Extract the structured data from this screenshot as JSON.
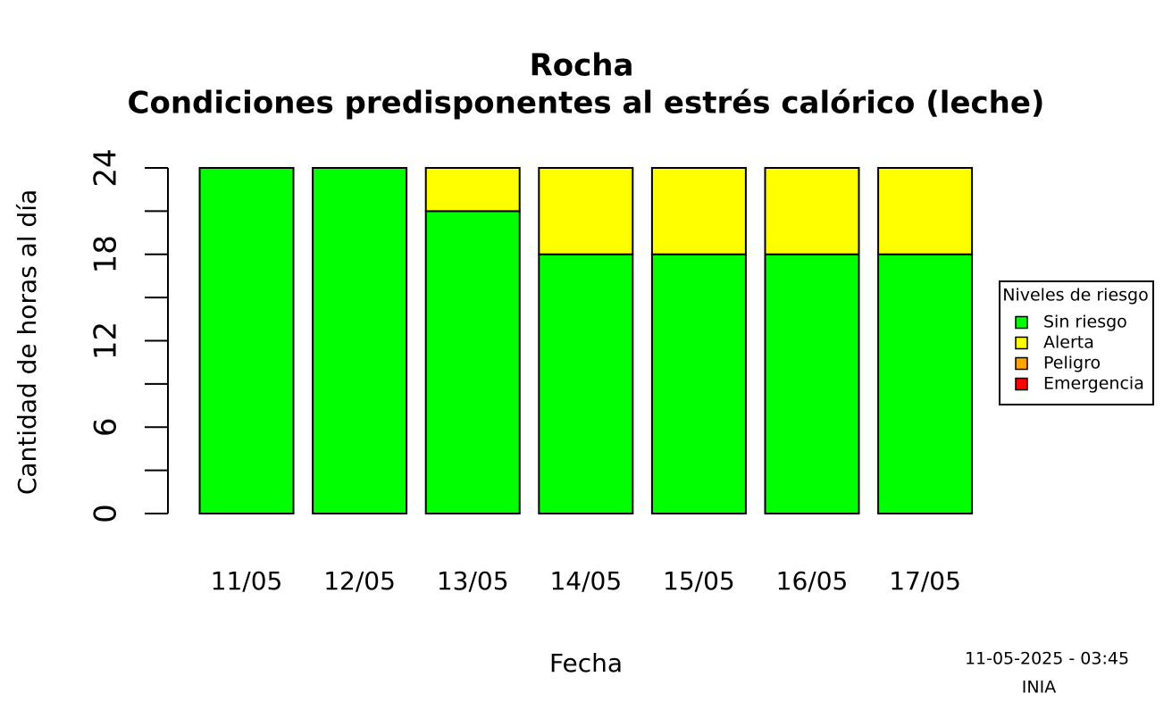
{
  "chart_data": {
    "type": "stacked_bar",
    "title": "Rocha",
    "subtitle": "Condiciones predisponentes al estrés calórico (leche)",
    "x_label": "Fecha",
    "y_label": "Cantidad de horas al día",
    "categories": [
      "11/05",
      "12/05",
      "13/05",
      "14/05",
      "15/05",
      "16/05",
      "17/05"
    ],
    "series": [
      {
        "name": "Sin riesgo",
        "color": "#00ff00",
        "values": [
          24,
          24,
          21,
          18,
          18,
          18,
          18
        ]
      },
      {
        "name": "Alerta",
        "color": "#ffff00",
        "values": [
          0,
          0,
          3,
          6,
          6,
          6,
          6
        ]
      },
      {
        "name": "Peligro",
        "color": "#ffa500",
        "values": [
          0,
          0,
          0,
          0,
          0,
          0,
          0
        ]
      },
      {
        "name": "Emergencia",
        "color": "#ff0000",
        "values": [
          0,
          0,
          0,
          0,
          0,
          0,
          0
        ]
      }
    ],
    "ylim": [
      0,
      24
    ],
    "yticks": [
      0,
      6,
      12,
      18,
      24
    ],
    "yticks_minor": [
      3,
      9,
      15,
      21
    ],
    "legend_title": "Niveles de riesgo",
    "legend_position": "right",
    "footer": [
      "11-05-2025 - 03:45",
      "INIA"
    ]
  }
}
